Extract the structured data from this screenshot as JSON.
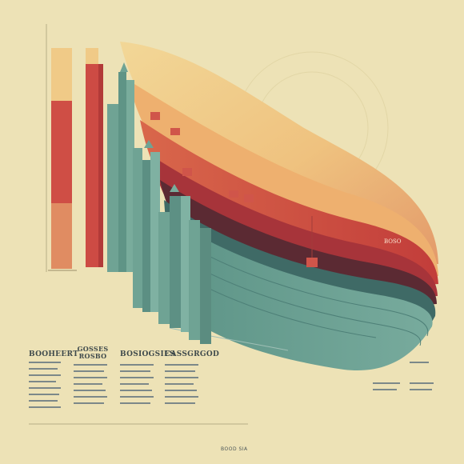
{
  "captions": {
    "col1": "BOOHEERT",
    "col2": "GOSSES ROSBO",
    "col3": "BOSIOGSIES",
    "col4": "CASSGRGOD"
  },
  "stage_label": "BOSO",
  "footer": "BOOD SIA",
  "palette": {
    "background": "#ede2b6",
    "teal": "#6fa394",
    "dark_teal": "#3e6b63",
    "red": "#c8463d",
    "coral": "#e08763",
    "sand": "#f0cd8b",
    "maroon": "#5b2a33"
  }
}
